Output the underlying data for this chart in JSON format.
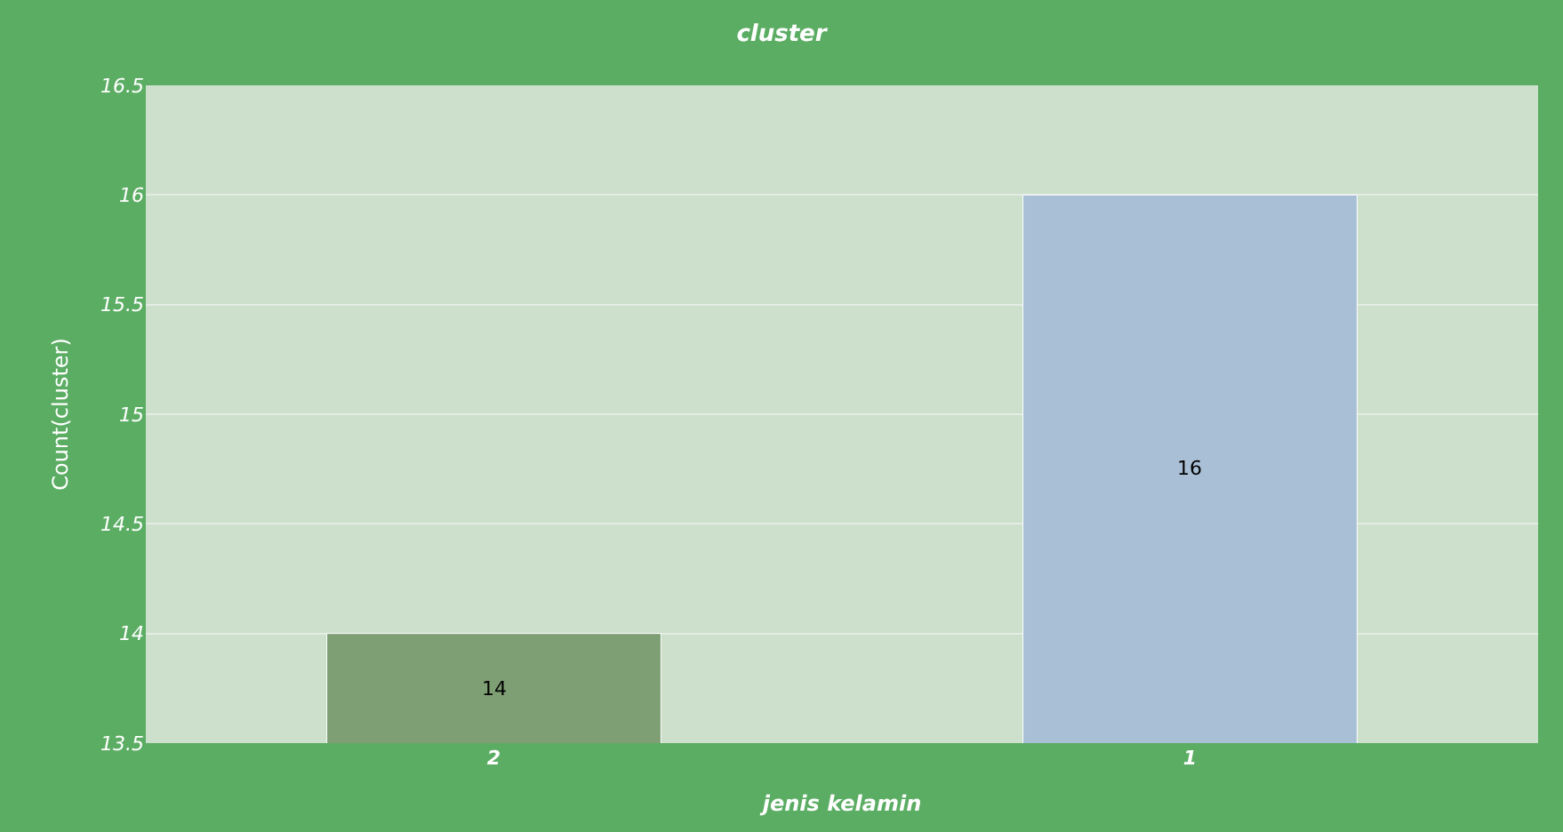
{
  "chart_data": {
    "type": "bar",
    "title": "cluster",
    "xlabel": "jenis kelamin",
    "ylabel": "Count(cluster)",
    "categories": [
      "2",
      "1"
    ],
    "values": [
      14,
      16
    ],
    "colors": [
      "#7e9e74",
      "#a9bfd6"
    ],
    "ylim": [
      13.5,
      16.5
    ],
    "yticks": [
      13.5,
      14,
      14.5,
      15,
      15.5,
      16,
      16.5
    ],
    "grid": "y",
    "data_labels": true
  }
}
